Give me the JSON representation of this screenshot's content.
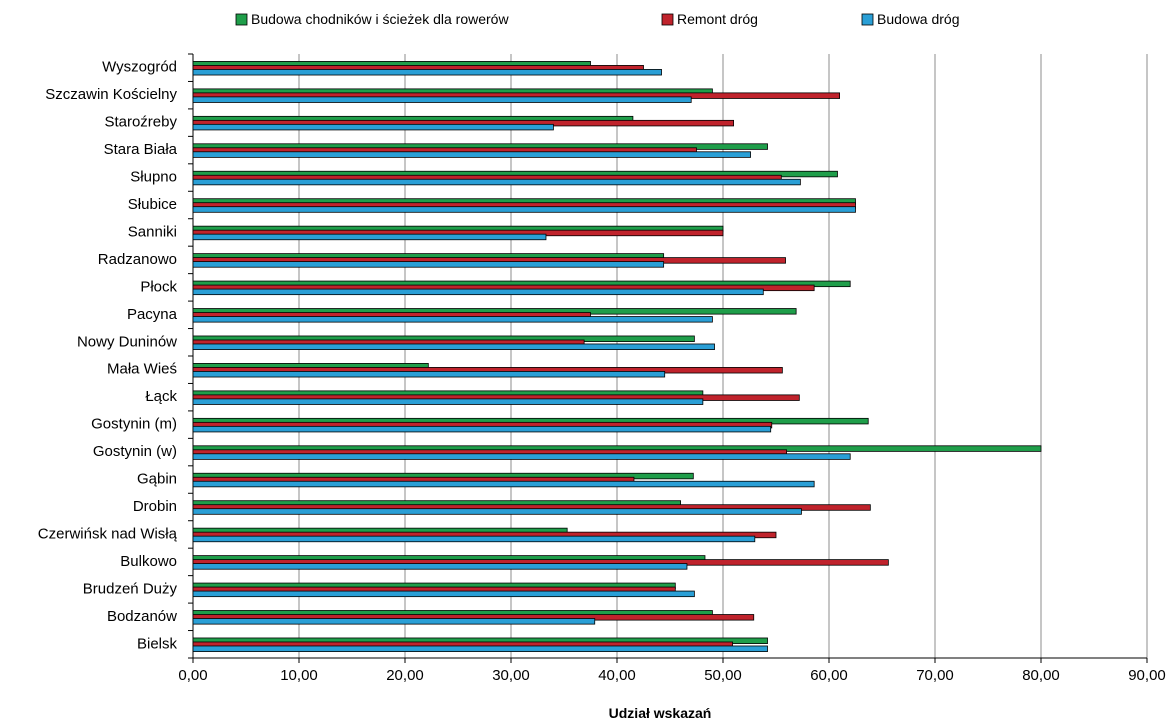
{
  "chart_data": {
    "type": "bar",
    "orientation": "horizontal",
    "categories": [
      "Wyszogród",
      "Szczawin Kościelny",
      "Staroźreby",
      "Stara Biała",
      "Słupno",
      "Słubice",
      "Sanniki",
      "Radzanowo",
      "Płock",
      "Pacyna",
      "Nowy Duninów",
      "Mała Wieś",
      "Łąck",
      "Gostynin (m)",
      "Gostynin (w)",
      "Gąbin",
      "Drobin",
      "Czerwińsk nad Wisłą",
      "Bulkowo",
      "Brudzeń Duży",
      "Bodzanów",
      "Bielsk"
    ],
    "series": [
      {
        "name": "Budowa chodników i ścieżek dla rowerów",
        "color": "#1f9e4a",
        "values": [
          37.5,
          49.0,
          41.5,
          54.2,
          60.8,
          62.5,
          50.0,
          44.4,
          62.0,
          56.9,
          47.3,
          22.2,
          48.1,
          63.7,
          80.0,
          47.2,
          46.0,
          35.3,
          48.3,
          45.5,
          49.0,
          54.2
        ]
      },
      {
        "name": "Remont dróg",
        "color": "#c0232c",
        "values": [
          42.5,
          61.0,
          51.0,
          47.5,
          55.5,
          62.5,
          50.0,
          55.9,
          58.6,
          37.5,
          36.9,
          55.6,
          57.2,
          54.6,
          56.0,
          41.6,
          63.9,
          55.0,
          65.6,
          45.5,
          52.9,
          50.9
        ]
      },
      {
        "name": "Budowa dróg",
        "color": "#2a9fd6",
        "values": [
          44.2,
          47.0,
          34.0,
          52.6,
          57.3,
          62.5,
          33.3,
          44.4,
          53.8,
          49.0,
          49.2,
          44.5,
          48.1,
          54.5,
          62.0,
          58.6,
          57.4,
          53.0,
          46.6,
          47.3,
          37.9,
          54.2
        ]
      }
    ],
    "xlabel": "Udział wskazań",
    "ylabel": "",
    "xlim": [
      0,
      90
    ],
    "ticks": [
      "0,00",
      "10,00",
      "20,00",
      "30,00",
      "40,00",
      "50,00",
      "60,00",
      "70,00",
      "80,00",
      "90,00"
    ],
    "grid": true,
    "legend_position": "top"
  }
}
